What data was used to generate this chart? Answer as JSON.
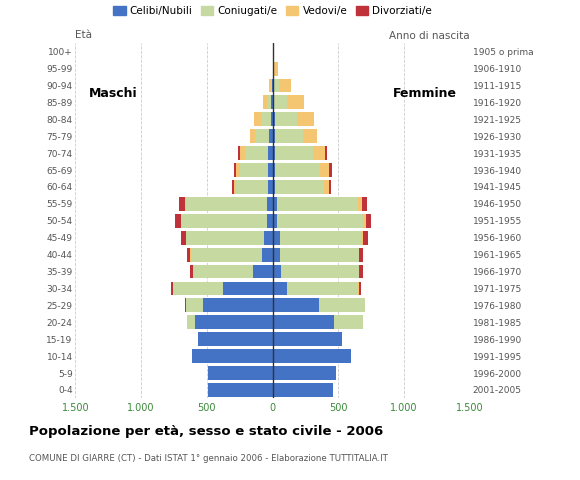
{
  "age_groups": [
    "0-4",
    "5-9",
    "10-14",
    "15-19",
    "20-24",
    "25-29",
    "30-34",
    "35-39",
    "40-44",
    "45-49",
    "50-54",
    "55-59",
    "60-64",
    "65-69",
    "70-74",
    "75-79",
    "80-84",
    "85-89",
    "90-94",
    "95-99",
    "100+"
  ],
  "birth_years": [
    "2001-2005",
    "1996-2000",
    "1991-1995",
    "1986-1990",
    "1981-1985",
    "1976-1980",
    "1971-1975",
    "1966-1970",
    "1961-1965",
    "1956-1960",
    "1951-1955",
    "1946-1950",
    "1941-1945",
    "1936-1940",
    "1931-1935",
    "1926-1930",
    "1921-1925",
    "1916-1920",
    "1911-1915",
    "1906-1910",
    "1905 o prima"
  ],
  "males": {
    "celibinubili": [
      490,
      490,
      610,
      570,
      590,
      530,
      380,
      150,
      80,
      65,
      45,
      40,
      35,
      35,
      35,
      25,
      15,
      10,
      5,
      0,
      0
    ],
    "coniugati": [
      0,
      0,
      0,
      0,
      60,
      130,
      380,
      450,
      540,
      590,
      650,
      620,
      245,
      215,
      175,
      110,
      75,
      30,
      10,
      0,
      0
    ],
    "vedovi": [
      0,
      0,
      0,
      0,
      0,
      0,
      0,
      5,
      5,
      5,
      5,
      10,
      15,
      25,
      35,
      40,
      55,
      30,
      15,
      0,
      0
    ],
    "divorziati": [
      0,
      0,
      0,
      0,
      0,
      5,
      15,
      20,
      25,
      35,
      40,
      40,
      15,
      20,
      20,
      0,
      0,
      0,
      0,
      0,
      0
    ]
  },
  "females": {
    "celibenubili": [
      460,
      480,
      600,
      530,
      470,
      350,
      110,
      65,
      55,
      55,
      30,
      30,
      20,
      20,
      20,
      15,
      15,
      10,
      5,
      0,
      0
    ],
    "coniugate": [
      0,
      0,
      0,
      0,
      220,
      350,
      540,
      590,
      600,
      620,
      660,
      620,
      370,
      340,
      290,
      215,
      170,
      100,
      40,
      5,
      0
    ],
    "vedove": [
      0,
      0,
      0,
      0,
      0,
      0,
      5,
      5,
      5,
      15,
      20,
      30,
      40,
      70,
      85,
      110,
      130,
      130,
      95,
      35,
      0
    ],
    "divorziate": [
      0,
      0,
      0,
      0,
      0,
      5,
      15,
      30,
      30,
      35,
      35,
      40,
      15,
      25,
      20,
      0,
      0,
      0,
      0,
      0,
      0
    ]
  },
  "colors": {
    "celibinubili": "#4472c4",
    "coniugati": "#c5d9a0",
    "vedovi": "#f5c672",
    "divorziati": "#c0323a"
  },
  "xlim": 1500,
  "title": "Popolazione per età, sesso e stato civile - 2006",
  "subtitle": "COMUNE DI GIARRE (CT) - Dati ISTAT 1° gennaio 2006 - Elaborazione TUTTITALIA.IT",
  "ylabel_left": "Età",
  "ylabel_right": "Anno di nascita",
  "legend_labels": [
    "Celibi/Nubili",
    "Coniugati/e",
    "Vedovi/e",
    "Divorziati/e"
  ],
  "label_maschi": "Maschi",
  "label_femmine": "Femmine"
}
